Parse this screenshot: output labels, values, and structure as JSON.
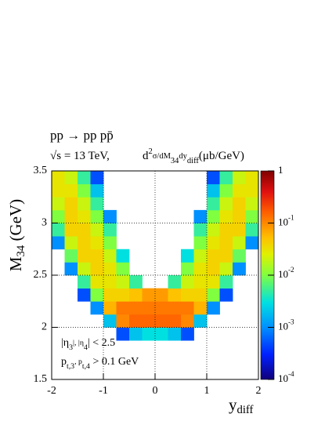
{
  "chart_data": {
    "type": "heatmap",
    "title": "pp → pp pp̄",
    "subtitle": "√s = 13 TeV,",
    "zlabel": "d^{2}σ/dM_{34}dy_{diff}(μb/GeV)",
    "xlabel": "y_{diff}",
    "ylabel": "M_{34} (GeV)",
    "annotations": [
      "|η_{3}|, |η_{4}| < 2.5",
      "p_{t,3}, p_{t,4} > 0.1 GeV"
    ],
    "x_bins": [
      -2,
      -1.75,
      -1.5,
      -1.25,
      -1,
      -0.75,
      -0.5,
      -0.25,
      0,
      0.25,
      0.5,
      0.75,
      1,
      1.25,
      1.5,
      1.75,
      2
    ],
    "y_bins": [
      1.5,
      1.625,
      1.75,
      1.875,
      2,
      2.125,
      2.25,
      2.375,
      2.5,
      2.625,
      2.75,
      2.875,
      3,
      3.125,
      3.25,
      3.375,
      3.5
    ],
    "values": [
      [
        null,
        null,
        null,
        null,
        null,
        null,
        null,
        null,
        null,
        null,
        null,
        null,
        null,
        null,
        null,
        null
      ],
      [
        null,
        null,
        null,
        null,
        null,
        null,
        null,
        null,
        null,
        null,
        null,
        null,
        null,
        null,
        null,
        null
      ],
      [
        null,
        null,
        null,
        null,
        null,
        null,
        null,
        null,
        null,
        null,
        null,
        null,
        null,
        null,
        null,
        null
      ],
      [
        null,
        null,
        null,
        null,
        null,
        0.0005,
        0.002,
        0.003,
        0.003,
        0.002,
        0.0005,
        null,
        null,
        null,
        null,
        null
      ],
      [
        null,
        null,
        null,
        null,
        0.002,
        0.1,
        0.15,
        0.15,
        0.15,
        0.15,
        0.1,
        0.002,
        null,
        null,
        null,
        null
      ],
      [
        null,
        null,
        null,
        0.001,
        0.06,
        0.12,
        0.12,
        0.12,
        0.12,
        0.12,
        0.12,
        0.06,
        0.001,
        null,
        null,
        null
      ],
      [
        null,
        null,
        0.0005,
        0.01,
        0.04,
        0.04,
        0.05,
        0.08,
        0.08,
        0.05,
        0.04,
        0.04,
        0.01,
        0.0005,
        null,
        null
      ],
      [
        null,
        null,
        0.005,
        0.03,
        0.03,
        0.02,
        0.005,
        null,
        null,
        0.005,
        0.02,
        0.03,
        0.03,
        0.005,
        null,
        null
      ],
      [
        null,
        0.001,
        0.02,
        0.04,
        0.03,
        0.01,
        null,
        null,
        null,
        null,
        0.01,
        0.03,
        0.04,
        0.02,
        0.001,
        null
      ],
      [
        null,
        0.008,
        0.04,
        0.04,
        0.02,
        0.003,
        null,
        null,
        null,
        null,
        0.003,
        0.02,
        0.04,
        0.04,
        0.008,
        null
      ],
      [
        0.001,
        0.02,
        0.04,
        0.03,
        0.01,
        null,
        null,
        null,
        null,
        null,
        null,
        0.01,
        0.03,
        0.04,
        0.02,
        0.001
      ],
      [
        0.005,
        0.04,
        0.04,
        0.02,
        0.005,
        null,
        null,
        null,
        null,
        null,
        null,
        0.005,
        0.02,
        0.04,
        0.04,
        0.005
      ],
      [
        0.01,
        0.04,
        0.03,
        0.01,
        0.001,
        null,
        null,
        null,
        null,
        null,
        null,
        0.001,
        0.01,
        0.03,
        0.04,
        0.01
      ],
      [
        0.02,
        0.04,
        0.02,
        0.005,
        null,
        null,
        null,
        null,
        null,
        null,
        null,
        null,
        0.005,
        0.02,
        0.04,
        0.02
      ],
      [
        0.03,
        0.03,
        0.01,
        0.002,
        null,
        null,
        null,
        null,
        null,
        null,
        null,
        null,
        0.002,
        0.01,
        0.03,
        0.03
      ],
      [
        0.03,
        0.02,
        0.005,
        0.0005,
        null,
        null,
        null,
        null,
        null,
        null,
        null,
        null,
        0.0005,
        0.005,
        0.02,
        0.03
      ]
    ],
    "xlim": [
      -2,
      2
    ],
    "xticks": [
      -2,
      -1,
      0,
      1,
      2
    ],
    "ylim": [
      1.5,
      3.5
    ],
    "yticks": [
      1.5,
      2,
      2.5,
      3,
      3.5
    ],
    "zlim": [
      0.0001,
      1
    ],
    "zlog": true,
    "zticks": [
      {
        "value": 0.0001,
        "label": "10^{-4}"
      },
      {
        "value": 0.001,
        "label": "10^{-3}"
      },
      {
        "value": 0.01,
        "label": "10^{-2}"
      },
      {
        "value": 0.1,
        "label": "10^{-1}"
      },
      1
    ],
    "grid": true
  }
}
